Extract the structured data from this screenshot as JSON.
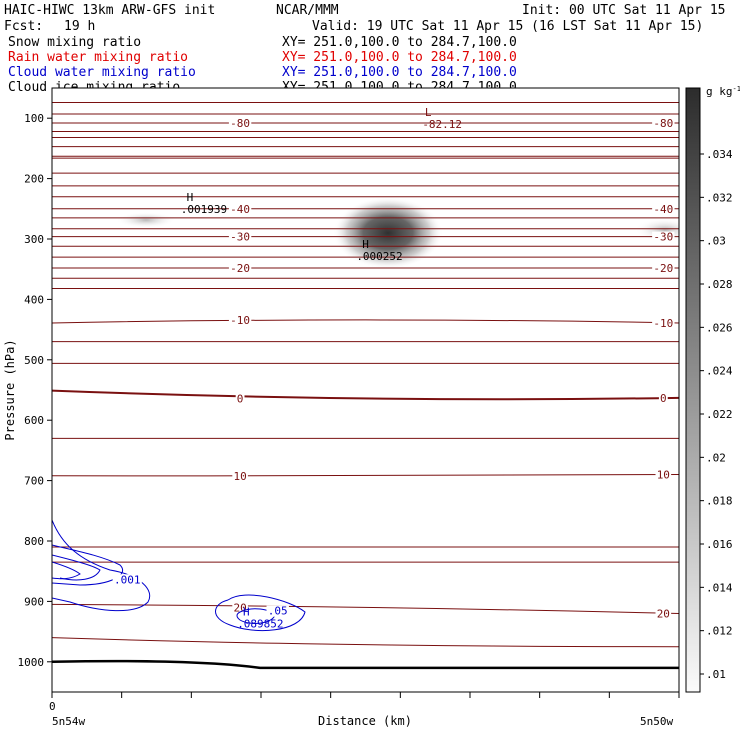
{
  "header": {
    "title": "HAIC-HIWC 13km ARW-GFS init",
    "org": "NCAR/MMM",
    "init": "Init: 00 UTC Sat 11 Apr 15",
    "fcst_label": "Fcst:",
    "fcst_value": "19 h",
    "valid": "Valid: 19 UTC Sat 11 Apr 15 (16 LST Sat 11 Apr 15)"
  },
  "legend": [
    {
      "name": "Snow mixing ratio",
      "xy": "XY= 251.0,100.0 to 284.7,100.0",
      "color": "#000000"
    },
    {
      "name": "Rain water mixing ratio",
      "xy": "XY= 251.0,100.0 to 284.7,100.0",
      "color": "#e00000"
    },
    {
      "name": "Cloud water mixing ratio",
      "xy": "XY= 251.0,100.0 to 284.7,100.0",
      "color": "#0000cc"
    },
    {
      "name": "Cloud ice mixing ratio",
      "xy": "XY= 251.0,100.0 to 284.7,100.0",
      "color": "#000000"
    }
  ],
  "colorbar": {
    "unit": "g kg",
    "unit_exp": "-1",
    "levels": [
      ".01",
      ".012",
      ".014",
      ".016",
      ".018",
      ".02",
      ".022",
      ".024",
      ".026",
      ".028",
      ".03",
      ".032",
      ".034"
    ]
  },
  "chart_data": {
    "type": "contour",
    "ylabel": "Pressure (hPa)",
    "xlabel": "Distance (km)",
    "x_start_tick": "0",
    "x_left_label": "5n54w",
    "x_right_label": "5n50w",
    "ylim": [
      1050,
      50
    ],
    "yticks": [
      100,
      200,
      300,
      400,
      500,
      600,
      700,
      800,
      900,
      1000
    ],
    "x_range": [
      0,
      1
    ],
    "temperature_contours": [
      {
        "value": -80,
        "label": "-80",
        "levels": [
          108,
          108,
          108
        ]
      },
      {
        "value": -70,
        "label": "",
        "levels": [
          132,
          132,
          132
        ]
      },
      {
        "value": -60,
        "label": "",
        "levels": [
          163,
          163,
          163
        ]
      },
      {
        "value": -50,
        "label": "",
        "levels": [
          191,
          191,
          191
        ]
      },
      {
        "value": -40,
        "label": "-40",
        "levels": [
          250,
          250,
          250
        ]
      },
      {
        "value": -30,
        "label": "-30",
        "levels": [
          296,
          296,
          296
        ]
      },
      {
        "value": -20,
        "label": "-20",
        "levels": [
          348,
          348,
          348
        ]
      },
      {
        "value": -10,
        "label": "-10",
        "levels": [
          439,
          434,
          439
        ]
      },
      {
        "value": 0,
        "label": "0",
        "levels": [
          551,
          564,
          563
        ]
      },
      {
        "value": 10,
        "label": "10",
        "levels": [
          692,
          692,
          690
        ]
      },
      {
        "value": 20,
        "label": "20",
        "levels": [
          905,
          910,
          920
        ]
      }
    ],
    "extra_isotherms_hpa": [
      74,
      93,
      122,
      147,
      166,
      212,
      230,
      265,
      283,
      312,
      330,
      365,
      382,
      470,
      506,
      630,
      810,
      835
    ],
    "minimum_label": {
      "text": "-82.12",
      "marker": "L",
      "x": 0.6,
      "p": 100
    },
    "snow_max": {
      "text": ".001939",
      "marker": "H",
      "x": 0.22,
      "p": 240
    },
    "ice_max": {
      "text": ".000252",
      "marker": "H",
      "x": 0.5,
      "p": 318
    },
    "cloud_water_contours": [
      {
        "label": ".001",
        "x": 0.12,
        "p": 870
      },
      {
        "label": ".05",
        "x": 0.36,
        "p": 922
      }
    ],
    "cloud_water_max": {
      "text": ".089852",
      "marker": "H",
      "x": 0.31,
      "p": 927
    }
  }
}
